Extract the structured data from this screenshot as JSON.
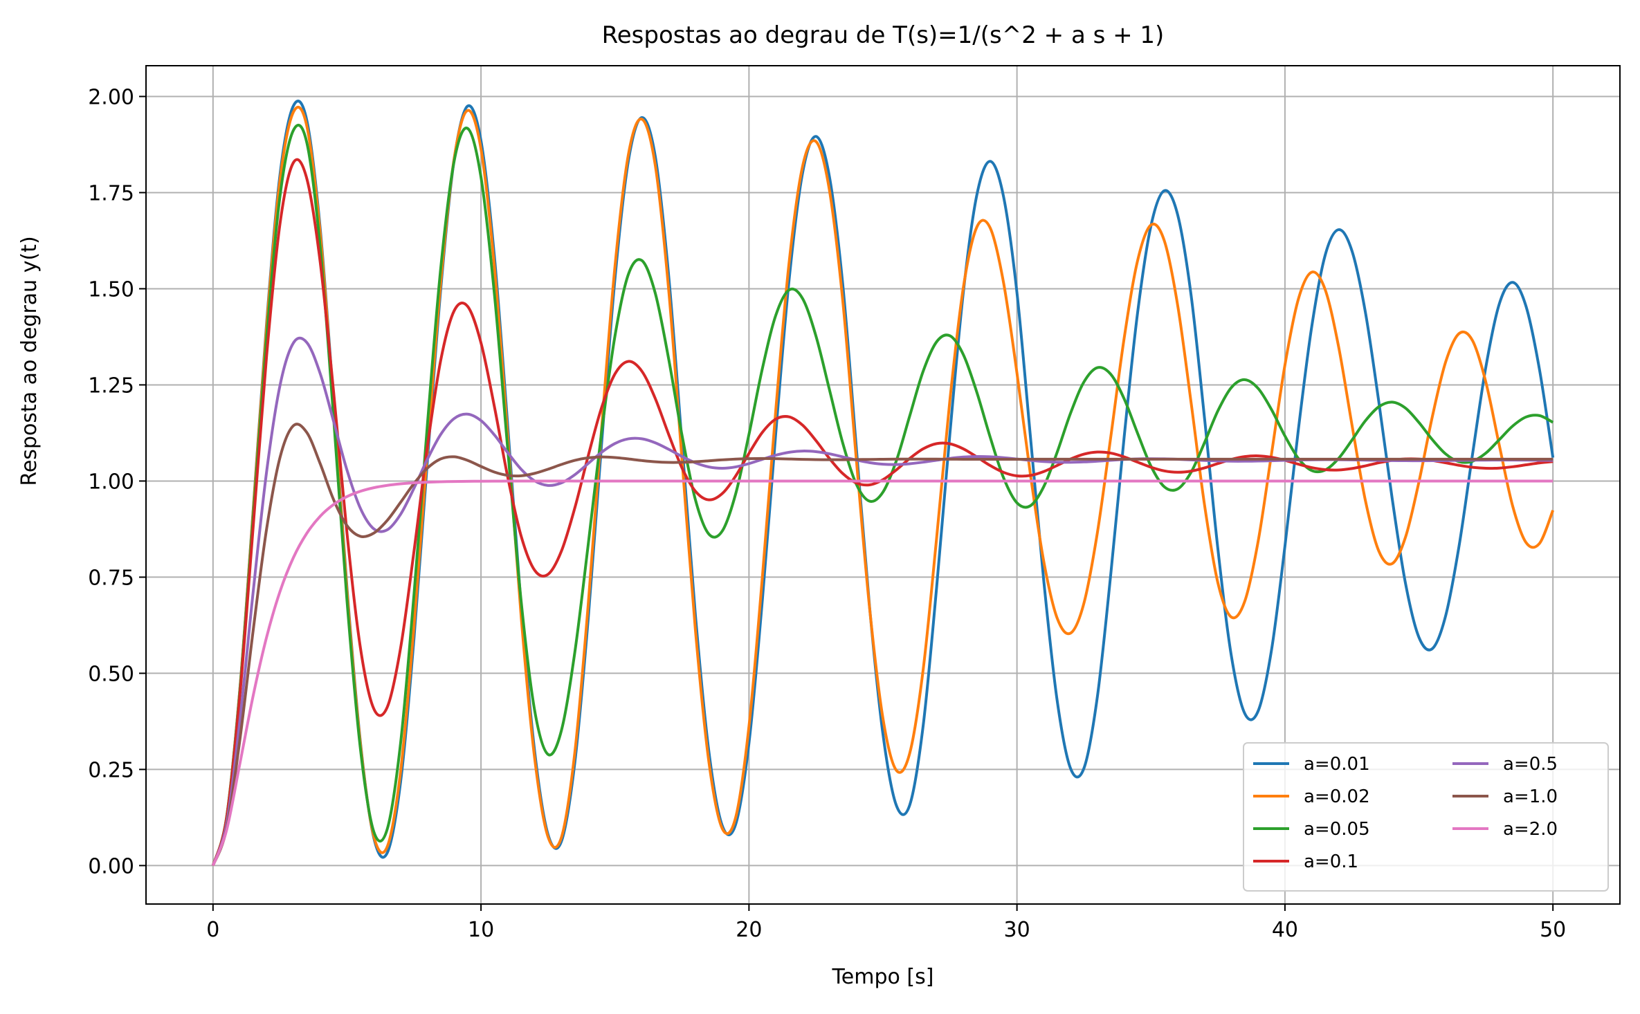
{
  "chart_data": {
    "type": "line",
    "title": "Respostas ao degrau de T(s)=1/(s^2 + a s + 1)",
    "xlabel": "Tempo [s]",
    "ylabel": "Resposta ao degrau y(t)",
    "xlim": [
      -2.5,
      52.5
    ],
    "ylim": [
      -0.1,
      2.08
    ],
    "xticks": [
      0,
      10,
      20,
      30,
      40,
      50
    ],
    "xtick_labels": [
      "0",
      "10",
      "20",
      "30",
      "40",
      "50"
    ],
    "yticks": [
      0.0,
      0.25,
      0.5,
      0.75,
      1.0,
      1.25,
      1.5,
      1.75,
      2.0
    ],
    "ytick_labels": [
      "0.00",
      "0.25",
      "0.50",
      "0.75",
      "1.00",
      "1.25",
      "1.50",
      "1.75",
      "2.00"
    ],
    "grid": true,
    "legend_position": "lower-right",
    "legend_columns": 2,
    "x": [
      0.0,
      0.5,
      1.0,
      1.5,
      2.0,
      2.5,
      3.0,
      3.5,
      4.0,
      4.5,
      5.0,
      5.5,
      6.0,
      6.5,
      7.0,
      7.5,
      8.0,
      8.5,
      9.0,
      9.5,
      10.0,
      10.5,
      11.0,
      11.5,
      12.0,
      12.5,
      13.0,
      13.5,
      14.0,
      14.5,
      15.0,
      15.5,
      16.0,
      16.5,
      17.0,
      17.5,
      18.0,
      18.5,
      19.0,
      19.5,
      20.0,
      20.5,
      21.0,
      21.5,
      22.0,
      22.5,
      23.0,
      23.5,
      24.0,
      24.5,
      25.0,
      25.5,
      26.0,
      26.5,
      27.0,
      27.5,
      28.0,
      28.5,
      29.0,
      29.5,
      30.0,
      30.5,
      31.0,
      31.5,
      32.0,
      32.5,
      33.0,
      33.5,
      34.0,
      34.5,
      35.0,
      35.5,
      36.0,
      36.5,
      37.0,
      37.5,
      38.0,
      38.5,
      39.0,
      39.5,
      40.0,
      40.5,
      41.0,
      41.5,
      42.0,
      42.5,
      43.0,
      43.5,
      44.0,
      44.5,
      45.0,
      45.5,
      46.0,
      46.5,
      47.0,
      47.5,
      48.0,
      48.5,
      49.0,
      49.5,
      50.0
    ],
    "series": [
      {
        "name": "a=0.01",
        "color": "#1f77b4",
        "values": [
          0.0,
          0.1224,
          0.4572,
          0.9261,
          1.4107,
          1.7966,
          1.9756,
          1.9381,
          1.6568,
          1.2052,
          0.7218,
          0.3215,
          0.0722,
          0.0328,
          0.2176,
          0.591,
          1.0521,
          1.5007,
          1.8365,
          1.9749,
          1.8847,
          1.5843,
          1.1418,
          0.6729,
          0.2985,
          0.0812,
          0.0627,
          0.2671,
          0.6414,
          1.0966,
          1.5268,
          1.8328,
          1.9451,
          1.8455,
          1.5365,
          1.0988,
          0.6521,
          0.2986,
          0.1043,
          0.1064,
          0.3185,
          0.6913,
          1.1247,
          1.5251,
          1.8012,
          1.8961,
          1.7923,
          1.5107,
          1.0916,
          0.6727,
          0.3413,
          0.1563,
          0.1577,
          0.3638,
          0.7218,
          1.1251,
          1.4918,
          1.7431,
          1.8314,
          1.7394,
          1.4894,
          1.1171,
          0.7406,
          0.4291,
          0.2526,
          0.2532,
          0.4389,
          0.7574,
          1.1144,
          1.4369,
          1.6637,
          1.7549,
          1.6914,
          1.4822,
          1.1625,
          0.8219,
          0.5453,
          0.3955,
          0.4019,
          0.5611,
          0.8309,
          1.1335,
          1.4017,
          1.5871,
          1.6536,
          1.5987,
          1.4396,
          1.2072,
          0.955,
          0.7332,
          0.5935,
          0.5641,
          0.6505,
          0.8322,
          1.0697,
          1.2978,
          1.4609,
          1.5166,
          1.4534,
          1.2891,
          1.0609
        ]
      },
      {
        "name": "a=0.02",
        "color": "#ff7f0e",
        "values": [
          0.0,
          0.1221,
          0.4554,
          0.9211,
          1.4012,
          1.7825,
          1.9594,
          1.9233,
          1.6446,
          1.1949,
          0.7131,
          0.3168,
          0.0762,
          0.0489,
          0.2446,
          0.6229,
          1.0804,
          1.5182,
          1.8393,
          1.9636,
          1.8633,
          1.5571,
          1.1128,
          0.6466,
          0.2803,
          0.0749,
          0.0729,
          0.2934,
          0.6781,
          1.1358,
          1.5588,
          1.8489,
          1.9411,
          1.8224,
          1.4999,
          1.0564,
          0.6131,
          0.2717,
          0.0968,
          0.1243,
          0.3621,
          0.7504,
          1.1844,
          1.5697,
          1.8183,
          1.8829,
          1.7571,
          1.4686,
          1.0609,
          0.6702,
          0.3823,
          0.2476,
          0.2925,
          0.5095,
          0.8505,
          1.2122,
          1.5036,
          1.66,
          1.6584,
          1.5157,
          1.2806,
          1.0181,
          0.7909,
          0.6434,
          0.6044,
          0.6827,
          0.8654,
          1.1144,
          1.3714,
          1.5727,
          1.6658,
          1.6244,
          1.4556,
          1.2029,
          0.9374,
          0.7345,
          0.6461,
          0.6872,
          0.8433,
          1.0712,
          1.3018,
          1.4729,
          1.5431,
          1.4979,
          1.3501,
          1.1463,
          0.9498,
          0.8183,
          0.7852,
          0.8544,
          0.9978,
          1.1676,
          1.3103,
          1.3837,
          1.3652,
          1.2563,
          1.0924,
          0.9341,
          0.8397,
          0.8378,
          0.9239
        ]
      },
      {
        "name": "a=0.05",
        "color": "#2ca02c",
        "values": [
          0.0,
          0.1211,
          0.4501,
          0.9063,
          1.373,
          1.7409,
          1.912,
          1.8802,
          1.6091,
          1.1654,
          0.6888,
          0.3041,
          0.0879,
          0.0943,
          0.3185,
          0.7046,
          1.1464,
          1.5546,
          1.8325,
          1.917,
          1.7902,
          1.4868,
          1.0814,
          0.6864,
          0.4042,
          0.2892,
          0.3511,
          0.5541,
          0.8343,
          1.1268,
          1.3776,
          1.5376,
          1.5736,
          1.4892,
          1.3187,
          1.1193,
          0.9515,
          0.8622,
          0.8696,
          0.9658,
          1.1213,
          1.2925,
          1.4309,
          1.4971,
          1.4746,
          1.3769,
          1.2383,
          1.0985,
          0.9926,
          0.9476,
          0.9712,
          1.0528,
          1.1697,
          1.2855,
          1.3619,
          1.3777,
          1.3285,
          1.2312,
          1.1142,
          1.0084,
          0.9432,
          0.9356,
          0.9854,
          1.0749,
          1.1765,
          1.2577,
          1.2948,
          1.2777,
          1.2138,
          1.1243,
          1.0387,
          0.9849,
          0.9795,
          1.0231,
          1.1001,
          1.1828,
          1.2431,
          1.2635,
          1.2408,
          1.1856,
          1.1171,
          1.0588,
          1.0272,
          1.0286,
          1.0586,
          1.1063,
          1.1565,
          1.1929,
          1.2051,
          1.1895,
          1.1522,
          1.1076,
          1.0703,
          1.0502,
          1.0515,
          1.0728,
          1.1076,
          1.1431,
          1.1666,
          1.1701,
          1.1526
        ]
      },
      {
        "name": "a=0.1",
        "color": "#d62728",
        "values": [
          0.0,
          0.1193,
          0.4414,
          0.8819,
          1.3257,
          1.6692,
          1.8281,
          1.7865,
          1.5693,
          1.2318,
          0.8643,
          0.5665,
          0.4077,
          0.4117,
          0.5659,
          0.8173,
          1.0901,
          1.3148,
          1.4429,
          1.4543,
          1.3592,
          1.1936,
          1.0095,
          0.8563,
          0.7682,
          0.7573,
          0.8175,
          0.9298,
          1.0652,
          1.1909,
          1.2786,
          1.3111,
          1.2859,
          1.2151,
          1.1218,
          1.0341,
          0.9735,
          0.9511,
          0.9673,
          1.0127,
          1.0719,
          1.1267,
          1.161,
          1.1668,
          1.1453,
          1.1051,
          1.0589,
          1.0194,
          0.9951,
          0.99,
          1.0034,
          1.0291,
          1.0588,
          1.0837,
          1.0973,
          1.0968,
          1.0837,
          1.0627,
          1.0403,
          1.0225,
          1.0134,
          1.0145,
          1.0247,
          1.0405,
          1.0572,
          1.0699,
          1.0754,
          1.0726,
          1.0628,
          1.0492,
          1.0359,
          1.0263,
          1.0228,
          1.0258,
          1.0342,
          1.0455,
          1.0563,
          1.0635,
          1.0654,
          1.0617,
          1.0537,
          1.0438,
          1.0349,
          1.0295,
          1.0287,
          1.0325,
          1.0394,
          1.0474,
          1.0539,
          1.0574,
          1.0571,
          1.0533,
          1.0473,
          1.0408,
          1.0356,
          1.0331,
          1.0337,
          1.0371,
          1.0421,
          1.0471,
          1.0506
        ]
      },
      {
        "name": "a=0.5",
        "color": "#9467bd",
        "values": [
          0.0,
          0.1062,
          0.3762,
          0.7126,
          1.0242,
          1.2486,
          1.3591,
          1.3603,
          1.2794,
          1.1553,
          1.0283,
          0.9289,
          0.8756,
          0.873,
          0.9135,
          0.9813,
          1.0567,
          1.1215,
          1.1626,
          1.174,
          1.1572,
          1.1199,
          1.0736,
          1.0305,
          1.0004,
          0.9885,
          0.9952,
          1.0164,
          1.0455,
          1.0748,
          1.0976,
          1.1097,
          1.1098,
          1.0995,
          1.0826,
          1.0638,
          1.0474,
          1.0367,
          1.0332,
          1.0367,
          1.0453,
          1.0565,
          1.0672,
          1.0748,
          1.078,
          1.0763,
          1.0708,
          1.0628,
          1.0546,
          1.0478,
          1.0437,
          1.0428,
          1.0449,
          1.049,
          1.0541,
          1.0589,
          1.0623,
          1.0637,
          1.063,
          1.0606,
          1.0572,
          1.0537,
          1.0508,
          1.049,
          1.0487,
          1.0497,
          1.0516,
          1.0539,
          1.056,
          1.0575,
          1.058,
          1.0576,
          1.0565,
          1.055,
          1.0535,
          1.0523,
          1.0516,
          1.0515,
          1.052,
          1.0528,
          1.0538,
          1.0547,
          1.0553,
          1.0556,
          1.0555,
          1.055,
          1.0544,
          1.0537,
          1.0532,
          1.0529,
          1.0528,
          1.0529,
          1.0532,
          1.0537,
          1.0541,
          1.0544,
          1.0545,
          1.0545,
          1.0543,
          1.0539,
          1.0536
        ]
      },
      {
        "name": "a=1.0",
        "color": "#8c564b",
        "values": [
          0.0,
          0.0937,
          0.3259,
          0.6122,
          0.8755,
          1.0613,
          1.1439,
          1.1262,
          1.0451,
          0.9515,
          0.8841,
          0.8561,
          0.8645,
          0.8975,
          0.9447,
          0.9936,
          1.0335,
          1.0576,
          1.063,
          1.0537,
          1.0379,
          1.0232,
          1.0146,
          1.0137,
          1.0199,
          1.0307,
          1.043,
          1.0537,
          1.0603,
          1.0625,
          1.0611,
          1.0574,
          1.0533,
          1.05,
          1.0484,
          1.0486,
          1.0502,
          1.0526,
          1.0551,
          1.0571,
          1.0582,
          1.0585,
          1.0581,
          1.0573,
          1.0564,
          1.0557,
          1.0554,
          1.0555,
          1.0558,
          1.0562,
          1.0566,
          1.0569,
          1.057,
          1.057,
          1.0569,
          1.0568,
          1.0566,
          1.0565,
          1.0565,
          1.0566,
          1.0566,
          1.0567,
          1.0567,
          1.0567,
          1.0567,
          1.0567,
          1.0567,
          1.0567,
          1.0567,
          1.0567,
          1.0567,
          1.0567,
          1.0567,
          1.0567,
          1.0567,
          1.0567,
          1.0567,
          1.0567,
          1.0567,
          1.0567,
          1.0567,
          1.0567,
          1.0567,
          1.0567,
          1.0567,
          1.0567,
          1.0567,
          1.0567,
          1.0567,
          1.0567,
          1.0567,
          1.0567,
          1.0567,
          1.0567,
          1.0567,
          1.0567,
          1.0567,
          1.0567,
          1.0567,
          1.0567,
          1.0567
        ]
      },
      {
        "name": "a=2.0",
        "color": "#e377c2",
        "values": [
          0.0,
          0.0902,
          0.2642,
          0.4422,
          0.594,
          0.7127,
          0.8009,
          0.8641,
          0.9084,
          0.9389,
          0.9596,
          0.9734,
          0.9826,
          0.9887,
          0.9927,
          0.9953,
          0.997,
          0.9981,
          0.9988,
          0.9992,
          0.9995,
          0.9997,
          0.9998,
          0.9999,
          0.9999,
          0.9999,
          1.0,
          1.0,
          1.0,
          1.0,
          1.0,
          1.0,
          1.0,
          1.0,
          1.0,
          1.0,
          1.0,
          1.0,
          1.0,
          1.0,
          1.0,
          1.0,
          1.0,
          1.0,
          1.0,
          1.0,
          1.0,
          1.0,
          1.0,
          1.0,
          1.0,
          1.0,
          1.0,
          1.0,
          1.0,
          1.0,
          1.0,
          1.0,
          1.0,
          1.0,
          1.0,
          1.0,
          1.0,
          1.0,
          1.0,
          1.0,
          1.0,
          1.0,
          1.0,
          1.0,
          1.0,
          1.0,
          1.0,
          1.0,
          1.0,
          1.0,
          1.0,
          1.0,
          1.0,
          1.0,
          1.0,
          1.0,
          1.0,
          1.0,
          1.0,
          1.0,
          1.0,
          1.0,
          1.0,
          1.0,
          1.0,
          1.0,
          1.0,
          1.0,
          1.0,
          1.0,
          1.0,
          1.0,
          1.0,
          1.0,
          1.0
        ]
      }
    ]
  }
}
